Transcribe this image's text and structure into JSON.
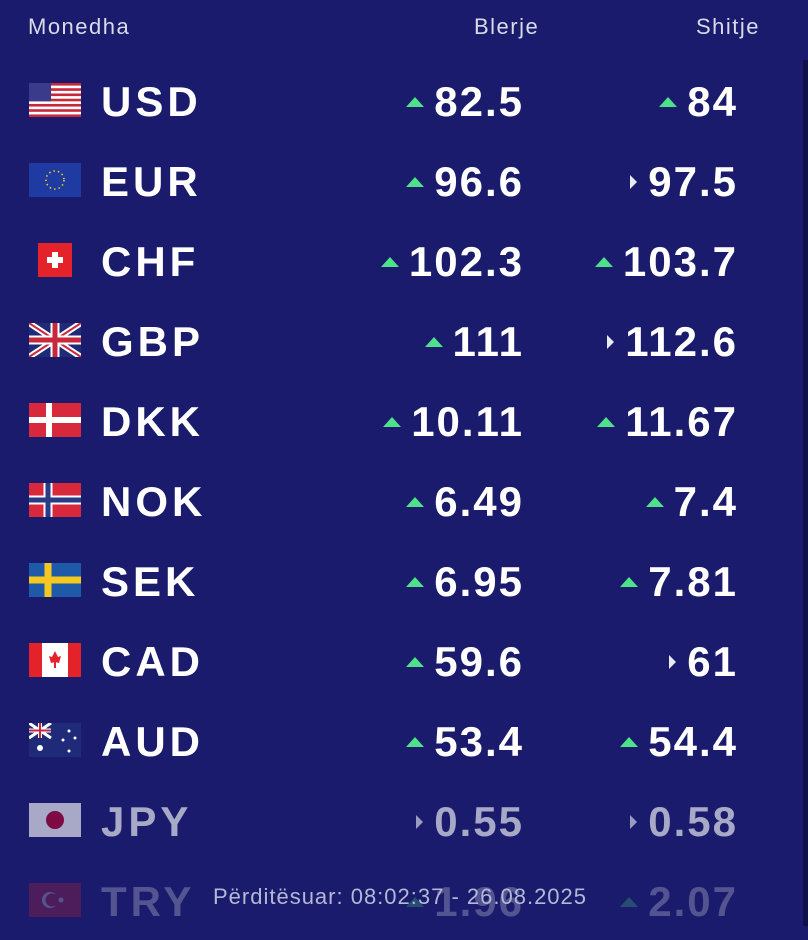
{
  "header": {
    "currency": "Monedha",
    "buy": "Blerje",
    "sell": "Shitje"
  },
  "rows": [
    {
      "code": "USD",
      "buy": "82.5",
      "buy_trend": "up",
      "sell": "84",
      "sell_trend": "up"
    },
    {
      "code": "EUR",
      "buy": "96.6",
      "buy_trend": "up",
      "sell": "97.5",
      "sell_trend": "flat"
    },
    {
      "code": "CHF",
      "buy": "102.3",
      "buy_trend": "up",
      "sell": "103.7",
      "sell_trend": "up"
    },
    {
      "code": "GBP",
      "buy": "111",
      "buy_trend": "up",
      "sell": "112.6",
      "sell_trend": "flat"
    },
    {
      "code": "DKK",
      "buy": "10.11",
      "buy_trend": "up",
      "sell": "11.67",
      "sell_trend": "up"
    },
    {
      "code": "NOK",
      "buy": "6.49",
      "buy_trend": "up",
      "sell": "7.4",
      "sell_trend": "up"
    },
    {
      "code": "SEK",
      "buy": "6.95",
      "buy_trend": "up",
      "sell": "7.81",
      "sell_trend": "up"
    },
    {
      "code": "CAD",
      "buy": "59.6",
      "buy_trend": "up",
      "sell": "61",
      "sell_trend": "flat"
    },
    {
      "code": "AUD",
      "buy": "53.4",
      "buy_trend": "up",
      "sell": "54.4",
      "sell_trend": "up"
    },
    {
      "code": "JPY",
      "buy": "0.55",
      "buy_trend": "flat",
      "sell": "0.58",
      "sell_trend": "flat"
    },
    {
      "code": "TRY",
      "buy": "1.96",
      "buy_trend": "up",
      "sell": "2.07",
      "sell_trend": "up"
    }
  ],
  "footer": "Përditësuar: 08:02:37 - 26.08.2025"
}
